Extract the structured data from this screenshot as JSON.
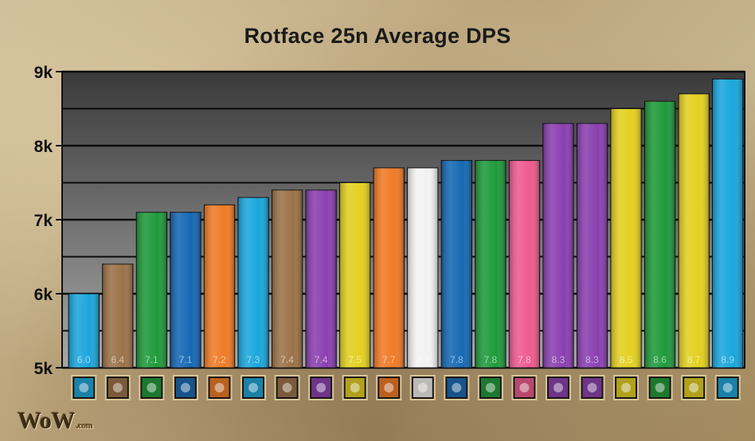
{
  "chart_data": {
    "type": "bar",
    "title": "Rotface 25n Average DPS",
    "xlabel": "",
    "ylabel": "",
    "ylim": [
      5000,
      9000
    ],
    "grid": true,
    "y_ticks": [
      5000,
      6000,
      7000,
      8000,
      9000
    ],
    "y_tick_labels": [
      "5k",
      "6k",
      "7k",
      "8k",
      "9k"
    ],
    "values": [
      6000,
      6400,
      7100,
      7100,
      7200,
      7300,
      7400,
      7400,
      7500,
      7700,
      7700,
      7800,
      7800,
      7800,
      8300,
      8300,
      8500,
      8600,
      8700,
      8900
    ],
    "value_labels": [
      "6.0",
      "6.4",
      "7.1",
      "7.1",
      "7.2",
      "7.3",
      "7.4",
      "7.4",
      "7.5",
      "7.7",
      "7.7",
      "7.8",
      "7.8",
      "7.8",
      "8.3",
      "8.3",
      "8.5",
      "8.6",
      "8.7",
      "8.9"
    ],
    "colors": [
      "#1aa6dc",
      "#9b7248",
      "#1e9a3a",
      "#1568b4",
      "#f07b26",
      "#1aa6dc",
      "#9b7248",
      "#8a3fb0",
      "#e3d020",
      "#f07b26",
      "#f2f2f2",
      "#1568b4",
      "#1e9a3a",
      "#ee5a8e",
      "#8a3fb0",
      "#8a3fb0",
      "#e3d020",
      "#1e9a3a",
      "#e3d020",
      "#1aa6dc"
    ],
    "icons": [
      "frost-bolt-icon",
      "blade-strike-icon",
      "nature-claw-icon",
      "lightning-icon",
      "arcane-blast-icon",
      "frost-orb-icon",
      "fire-demon-icon",
      "claw-slash-icon",
      "warrior-helm-icon",
      "storm-strike-icon",
      "holy-skull-icon",
      "frost-shield-icon",
      "axe-strike-icon",
      "shadow-orb-icon",
      "moonkin-icon",
      "nature-beast-icon",
      "red-blade-icon",
      "whirlwind-icon",
      "sword-slash-icon",
      "fireball-icon"
    ]
  },
  "logo": {
    "text": "WoW",
    "suffix": ".com"
  }
}
